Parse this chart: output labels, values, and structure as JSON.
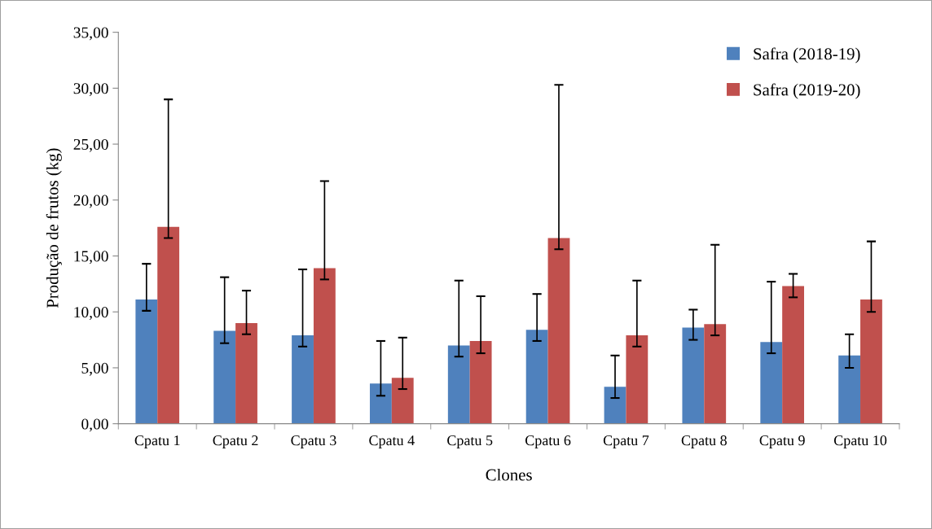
{
  "chart_data": {
    "type": "bar",
    "xlabel": "Clones",
    "ylabel": "Produção de frutos (kg)",
    "categories": [
      "Cpatu 1",
      "Cpatu 2",
      "Cpatu 3",
      "Cpatu 4",
      "Cpatu 5",
      "Cpatu 6",
      "Cpatu 7",
      "Cpatu 8",
      "Cpatu 9",
      "Cpatu 10"
    ],
    "series": [
      {
        "name": "Safra (2018-19)",
        "color": "#4f81bd",
        "values": [
          11.1,
          8.3,
          7.9,
          3.6,
          7.0,
          8.4,
          3.3,
          8.6,
          7.3,
          6.1
        ],
        "errors": [
          [
            10.1,
            14.3
          ],
          [
            7.2,
            13.1
          ],
          [
            6.9,
            13.8
          ],
          [
            2.5,
            7.4
          ],
          [
            6.0,
            12.8
          ],
          [
            7.4,
            11.6
          ],
          [
            2.3,
            6.1
          ],
          [
            7.5,
            10.2
          ],
          [
            6.3,
            12.7
          ],
          [
            5.0,
            8.0
          ]
        ]
      },
      {
        "name": "Safra (2019-20)",
        "color": "#c0504d",
        "values": [
          17.6,
          9.0,
          13.9,
          4.1,
          7.4,
          16.6,
          7.9,
          8.9,
          12.3,
          11.1
        ],
        "errors": [
          [
            16.6,
            29.0
          ],
          [
            8.0,
            11.9
          ],
          [
            12.9,
            21.7
          ],
          [
            3.1,
            7.7
          ],
          [
            6.3,
            11.4
          ],
          [
            15.6,
            30.3
          ],
          [
            6.9,
            12.8
          ],
          [
            7.9,
            16.0
          ],
          [
            11.3,
            13.4
          ],
          [
            10.0,
            16.3
          ]
        ]
      }
    ],
    "ylim": [
      0,
      35
    ],
    "yticks": [
      {
        "value": 0,
        "label": "0,00"
      },
      {
        "value": 5,
        "label": "5,00"
      },
      {
        "value": 10,
        "label": "10,00"
      },
      {
        "value": 15,
        "label": "15,00"
      },
      {
        "value": 20,
        "label": "20,00"
      },
      {
        "value": 25,
        "label": "25,00"
      },
      {
        "value": 30,
        "label": "30,00"
      },
      {
        "value": 35,
        "label": "35,00"
      }
    ],
    "grid": false,
    "legend": "top right"
  }
}
